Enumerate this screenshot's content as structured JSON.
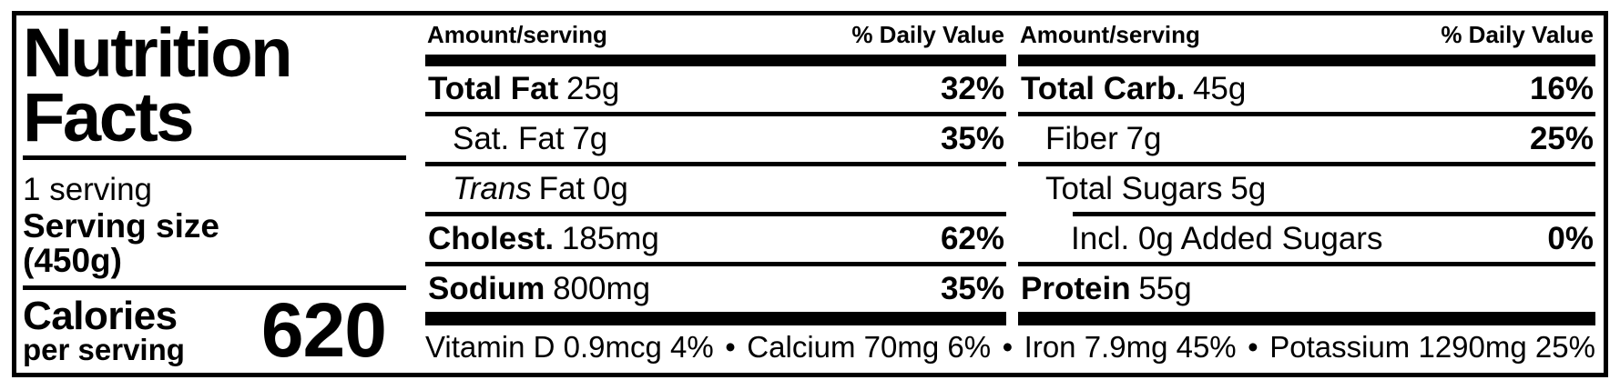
{
  "colors": {
    "background": "#ffffff",
    "text": "#000000"
  },
  "left_panel": {
    "title_line1": "Nutrition",
    "title_line2": "Facts",
    "servings": "1 serving",
    "serving_size_label": "Serving size",
    "serving_size_value": "(450g)",
    "calories_label": "Calories",
    "calories_sublabel": "per serving",
    "calories_value": "620"
  },
  "columns": [
    {
      "header": {
        "amount": "Amount/serving",
        "daily_value": "% Daily Value"
      },
      "rows": [
        {
          "name": "Total Fat",
          "value": "25g",
          "dv": "32%"
        },
        {
          "name": "Sat. Fat",
          "value": "7g",
          "dv": "35%"
        },
        {
          "name_italic": "Trans",
          "name": "Fat",
          "value": "0g",
          "dv": ""
        },
        {
          "name": "Cholest.",
          "value": "185mg",
          "dv": "62%"
        },
        {
          "name": "Sodium",
          "value": "800mg",
          "dv": "35%"
        }
      ]
    },
    {
      "header": {
        "amount": "Amount/serving",
        "daily_value": "% Daily Value"
      },
      "rows": [
        {
          "name": "Total Carb.",
          "value": "45g",
          "dv": "16%"
        },
        {
          "name": "Fiber",
          "value": "7g",
          "dv": "25%"
        },
        {
          "name": "Total Sugars",
          "value": "5g",
          "dv": ""
        },
        {
          "name": "Incl. 0g Added Sugars",
          "value": "",
          "dv": "0%"
        },
        {
          "name": "Protein",
          "value": "55g",
          "dv": ""
        }
      ]
    }
  ],
  "micronutrients": {
    "separator": "•",
    "items": [
      "Vitamin D 0.9mcg 4%",
      "Calcium 70mg 6%",
      "Iron 7.9mg 45%",
      "Potassium 1290mg 25%"
    ]
  }
}
